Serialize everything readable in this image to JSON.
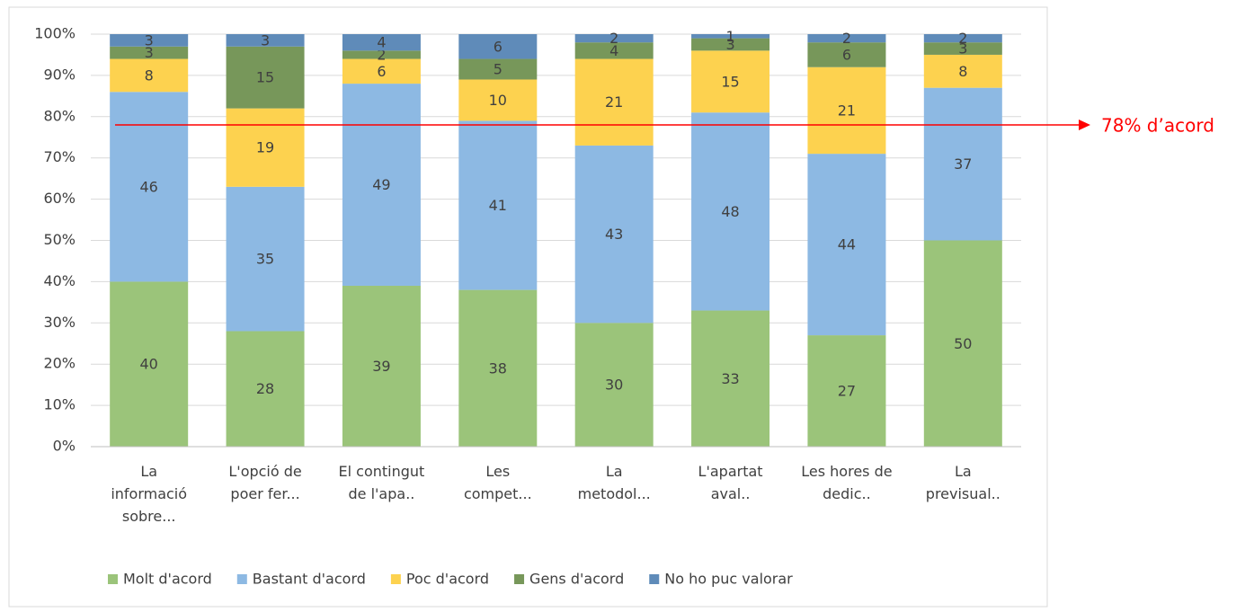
{
  "chart_data": {
    "type": "stacked_bar_percent",
    "categories": [
      "La informació sobre...",
      "L'opció de poer fer...",
      "El contingut de l'apa..",
      "Les compet...",
      "La metodol...",
      "L'apartat aval..",
      "Les hores de dedic..",
      "La previsual.."
    ],
    "series": [
      {
        "name": "Molt d'acord",
        "color": "#9bc47a",
        "values": [
          40,
          28,
          39,
          38,
          30,
          33,
          27,
          50
        ]
      },
      {
        "name": "Bastant d'acord",
        "color": "#8db9e3",
        "values": [
          46,
          35,
          49,
          41,
          43,
          48,
          44,
          37
        ]
      },
      {
        "name": "Poc d'acord",
        "color": "#fdd24f",
        "values": [
          8,
          19,
          6,
          10,
          21,
          15,
          21,
          8
        ]
      },
      {
        "name": "Gens d'acord",
        "color": "#77975a",
        "values": [
          3,
          15,
          2,
          5,
          4,
          3,
          6,
          3
        ]
      },
      {
        "name": "No ho puc valorar",
        "color": "#5f8bb9",
        "values": [
          3,
          3,
          4,
          6,
          2,
          1,
          2,
          2
        ]
      }
    ],
    "ylim": [
      0,
      100
    ],
    "yticks": [
      {
        "value": 0,
        "label": "0%"
      },
      {
        "value": 10,
        "label": "10%"
      },
      {
        "value": 20,
        "label": "20%"
      },
      {
        "value": 30,
        "label": "30%"
      },
      {
        "value": 40,
        "label": "40%"
      },
      {
        "value": 50,
        "label": "50%"
      },
      {
        "value": 60,
        "label": "60%"
      },
      {
        "value": 70,
        "label": "70%"
      },
      {
        "value": 80,
        "label": "80%"
      },
      {
        "value": 90,
        "label": "90%"
      },
      {
        "value": 100,
        "label": "100%"
      }
    ],
    "grid": true,
    "legend": "bottom",
    "annotation": {
      "text": "78% d’acord",
      "value": 78,
      "color": "#ff0000"
    }
  }
}
